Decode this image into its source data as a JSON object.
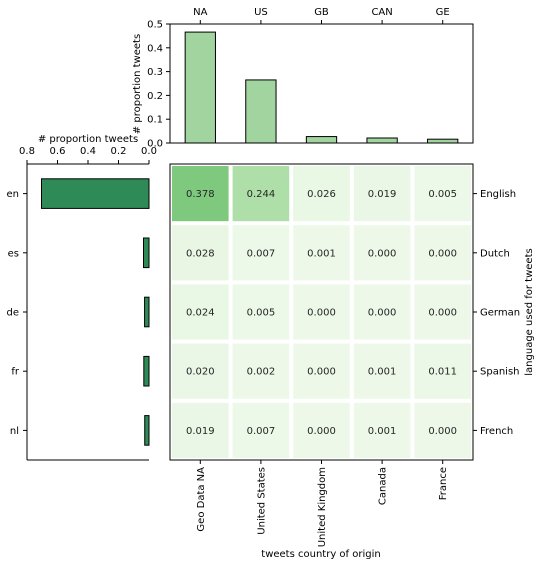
{
  "chart_data": [
    {
      "type": "bar",
      "name": "top-bar-chart",
      "categories": [
        "NA",
        "US",
        "GB",
        "CAN",
        "GE"
      ],
      "values": [
        0.466,
        0.265,
        0.027,
        0.021,
        0.016
      ],
      "ylabel": "# proportion tweets",
      "ylim": [
        0,
        0.5
      ],
      "yticks": [
        "0.0",
        "0.1",
        "0.2",
        "0.3",
        "0.4",
        "0.5"
      ],
      "bar_color": "#a1d49f"
    },
    {
      "type": "bar",
      "orientation": "horizontal",
      "name": "left-bar-chart",
      "categories": [
        "en",
        "es",
        "de",
        "fr",
        "nl"
      ],
      "values": [
        0.705,
        0.036,
        0.029,
        0.034,
        0.028
      ],
      "xlabel": "# proportion tweets",
      "xlim": [
        0.8,
        0
      ],
      "xticks": [
        "0.8",
        "0.6",
        "0.4",
        "0.2",
        "0.0"
      ],
      "bar_color": "#2e8b57"
    },
    {
      "type": "heatmap",
      "name": "heatmap",
      "rows": [
        "English",
        "Dutch",
        "German",
        "Spanish",
        "French"
      ],
      "columns": [
        "Geo Data NA",
        "United States",
        "United Kingdom",
        "Canada",
        "France"
      ],
      "values": [
        [
          0.378,
          0.244,
          0.026,
          0.019,
          0.005
        ],
        [
          0.028,
          0.007,
          0.001,
          0.0,
          0.0
        ],
        [
          0.024,
          0.005,
          0.0,
          0.0,
          0.0
        ],
        [
          0.02,
          0.002,
          0.0,
          0.001,
          0.011
        ],
        [
          0.019,
          0.007,
          0.0,
          0.001,
          0.0
        ]
      ],
      "labels": [
        [
          "0.378",
          "0.244",
          "0.026",
          "0.019",
          "0.005"
        ],
        [
          "0.028",
          "0.007",
          "0.001",
          "0.000",
          "0.000"
        ],
        [
          "0.024",
          "0.005",
          "0.000",
          "0.000",
          "0.000"
        ],
        [
          "0.020",
          "0.002",
          "0.000",
          "0.001",
          "0.011"
        ],
        [
          "0.019",
          "0.007",
          "0.000",
          "0.001",
          "0.000"
        ]
      ],
      "xlabel": "tweets country of origin",
      "ylabel": "language used for tweets",
      "colormap": "Greens",
      "vmax": 0.378
    }
  ]
}
